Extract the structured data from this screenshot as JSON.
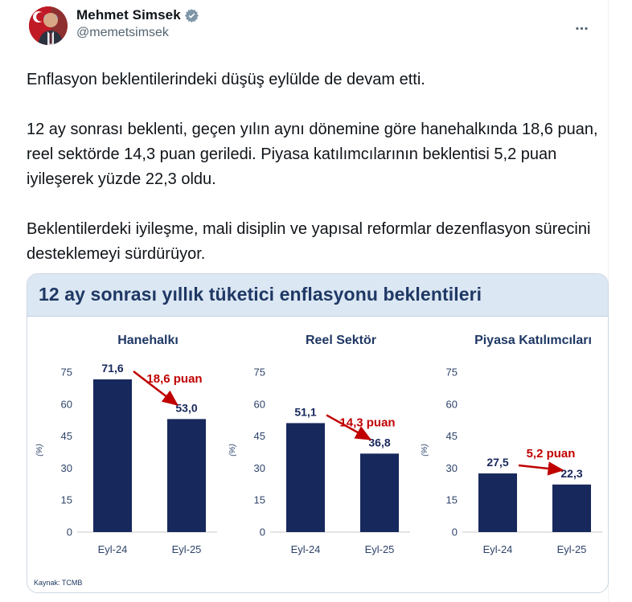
{
  "tweet": {
    "author_name": "Mehmet Simsek",
    "author_handle": "@memetsimsek",
    "verified_badge": "gray-checkmark-seal",
    "more_menu": "three-dots-more",
    "paragraphs": [
      "Enflasyon beklentilerindeki düşüş eylülde de devam etti.",
      "12 ay sonrası beklenti, geçen yılın aynı dönemine göre hanehalkında 18,6 puan, reel sektörde 14,3 puan geriledi. Piyasa katılımcılarının beklentisi 5,2 puan iyileşerek yüzde 22,3 oldu.",
      "Beklentilerdeki iyileşme, mali disiplin ve yapısal reformlar dezenflasyon sürecini desteklemeyi sürdürüyor."
    ]
  },
  "chart_data": {
    "type": "bar",
    "title": "12 ay sonrası yıllık tüketici enflasyonu beklentileri",
    "ylabel": "(%)",
    "ylim": [
      0,
      75
    ],
    "yticks": [
      0,
      15,
      30,
      45,
      60,
      75
    ],
    "categories": [
      "Eyl-24",
      "Eyl-25"
    ],
    "panels": [
      {
        "name": "Hanehalkı",
        "values": [
          71.6,
          53.0
        ],
        "value_labels": [
          "71,6",
          "53,0"
        ],
        "delta_label": "18,6 puan"
      },
      {
        "name": "Reel Sektör",
        "values": [
          51.1,
          36.8
        ],
        "value_labels": [
          "51,1",
          "36,8"
        ],
        "delta_label": "14,3 puan"
      },
      {
        "name": "Piyasa Katılımcıları",
        "values": [
          27.5,
          22.3
        ],
        "value_labels": [
          "27,5",
          "22,3"
        ],
        "delta_label": "5,2 puan"
      }
    ],
    "source": "Kaynak: TCMB",
    "grid": false,
    "legend": "none",
    "colors": {
      "bar": "#17285c",
      "delta": "#c00000",
      "axis_text": "#2e4369",
      "panel_title": "#1f3864",
      "banner_bg": "#dbe7f3",
      "banner_text": "#1f3864",
      "baseline": "#dcdcdc"
    }
  }
}
